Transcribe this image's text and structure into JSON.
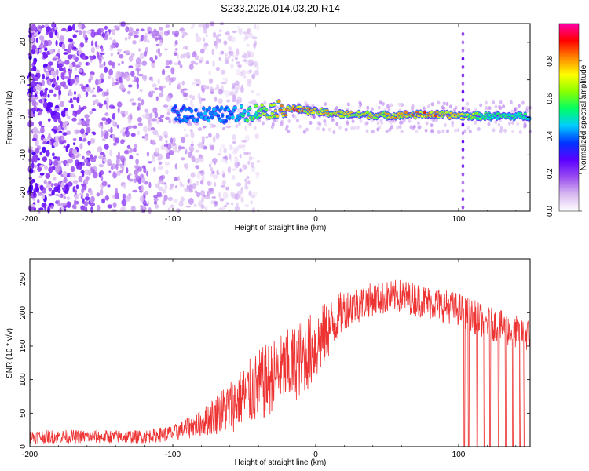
{
  "title": "S233.2026.014.03.20.R14",
  "chart_data": [
    {
      "type": "heatmap",
      "name": "spectrogram",
      "xlabel": "Height of straight line (km)",
      "ylabel": "Frequency (Hz)",
      "xlim": [
        -200,
        150
      ],
      "ylim": [
        -25,
        25
      ],
      "xticks": [
        -200,
        -100,
        0,
        100
      ],
      "yticks": [
        -20,
        -10,
        0,
        10,
        20
      ],
      "colorbar": {
        "label": "Normalized spectral amplitude",
        "range": [
          0.0,
          1.0
        ],
        "ticks": [
          "0.0",
          "0.2",
          "0.4",
          "0.6",
          "0.8"
        ],
        "colors": [
          "#ffffff",
          "#d8b8f0",
          "#9a4cf0",
          "#5a00ff",
          "#0033ff",
          "#00ccff",
          "#00ff66",
          "#88ff00",
          "#ffff00",
          "#ff8800",
          "#ff0000",
          "#ff00aa"
        ]
      },
      "carrier_track": [
        {
          "x": -100,
          "y": 1.0,
          "amp": 0.35
        },
        {
          "x": -80,
          "y": 0.8,
          "amp": 0.4
        },
        {
          "x": -60,
          "y": 0.6,
          "amp": 0.4
        },
        {
          "x": -40,
          "y": 1.5,
          "amp": 0.6
        },
        {
          "x": -20,
          "y": 2.5,
          "amp": 0.8
        },
        {
          "x": 0,
          "y": 1.5,
          "amp": 0.75
        },
        {
          "x": 20,
          "y": 0.8,
          "amp": 0.7
        },
        {
          "x": 50,
          "y": 0.5,
          "amp": 0.7
        },
        {
          "x": 80,
          "y": 0.8,
          "amp": 0.8
        },
        {
          "x": 100,
          "y": 0.5,
          "amp": 0.7
        },
        {
          "x": 120,
          "y": 0.3,
          "amp": 0.55
        },
        {
          "x": 150,
          "y": 0.3,
          "amp": 0.5
        }
      ],
      "noise_region": {
        "x_from": -200,
        "x_to": -40,
        "amp_max": 0.3
      },
      "interference_line": {
        "x": 103
      }
    },
    {
      "type": "line",
      "name": "snr",
      "xlabel": "Height of straight line (km)",
      "ylabel": "SNR (10 * v/v)",
      "xlim": [
        -200,
        150
      ],
      "ylim": [
        0,
        280
      ],
      "xticks": [
        -200,
        -100,
        0,
        100
      ],
      "yticks": [
        0,
        50,
        100,
        150,
        200,
        250
      ],
      "color": "#ee3333",
      "envelope": [
        {
          "x": -200,
          "mean": 15,
          "spread": 10
        },
        {
          "x": -120,
          "mean": 15,
          "spread": 10
        },
        {
          "x": -100,
          "mean": 20,
          "spread": 12
        },
        {
          "x": -80,
          "mean": 35,
          "spread": 20
        },
        {
          "x": -60,
          "mean": 60,
          "spread": 40
        },
        {
          "x": -40,
          "mean": 90,
          "spread": 55
        },
        {
          "x": -20,
          "mean": 115,
          "spread": 60
        },
        {
          "x": 0,
          "mean": 150,
          "spread": 55
        },
        {
          "x": 20,
          "mean": 205,
          "spread": 30
        },
        {
          "x": 40,
          "mean": 220,
          "spread": 25
        },
        {
          "x": 60,
          "mean": 225,
          "spread": 25
        },
        {
          "x": 80,
          "mean": 215,
          "spread": 25
        },
        {
          "x": 100,
          "mean": 205,
          "spread": 25
        },
        {
          "x": 120,
          "mean": 185,
          "spread": 25
        },
        {
          "x": 150,
          "mean": 165,
          "spread": 25
        }
      ],
      "dropouts": [
        104,
        107,
        113,
        118,
        122,
        128,
        133,
        138,
        143,
        146
      ]
    }
  ]
}
